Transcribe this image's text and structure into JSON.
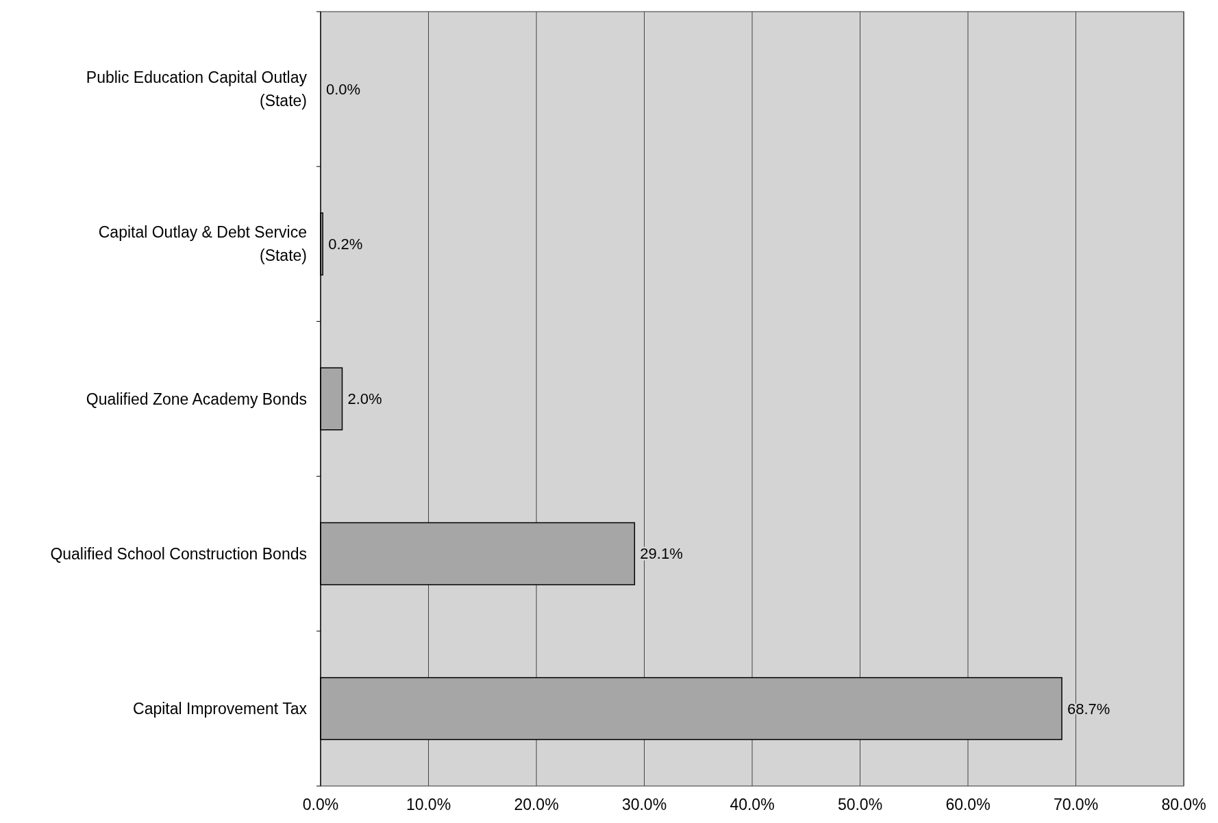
{
  "chart_data": {
    "type": "bar",
    "orientation": "horizontal",
    "categories": [
      "Public Education Capital Outlay (State)",
      "Capital Outlay & Debt Service (State)",
      "Qualified Zone Academy Bonds",
      "Qualified School Construction Bonds",
      "Capital Improvement Tax"
    ],
    "values": [
      0.0,
      0.2,
      2.0,
      29.1,
      68.7
    ],
    "value_labels": [
      "0.0%",
      "0.2%",
      "2.0%",
      "29.1%",
      "68.7%"
    ],
    "color": "#a6a6a6",
    "xlim": [
      0,
      80
    ],
    "xticks": [
      {
        "value": 0,
        "label": "0.0%"
      },
      {
        "value": 10,
        "label": "10.0%"
      },
      {
        "value": 20,
        "label": "20.0%"
      },
      {
        "value": 30,
        "label": "30.0%"
      },
      {
        "value": 40,
        "label": "40.0%"
      },
      {
        "value": 50,
        "label": "50.0%"
      },
      {
        "value": 60,
        "label": "60.0%"
      },
      {
        "value": 70,
        "label": "70.0%"
      },
      {
        "value": 80,
        "label": "80.0%"
      }
    ],
    "grid": "x"
  }
}
